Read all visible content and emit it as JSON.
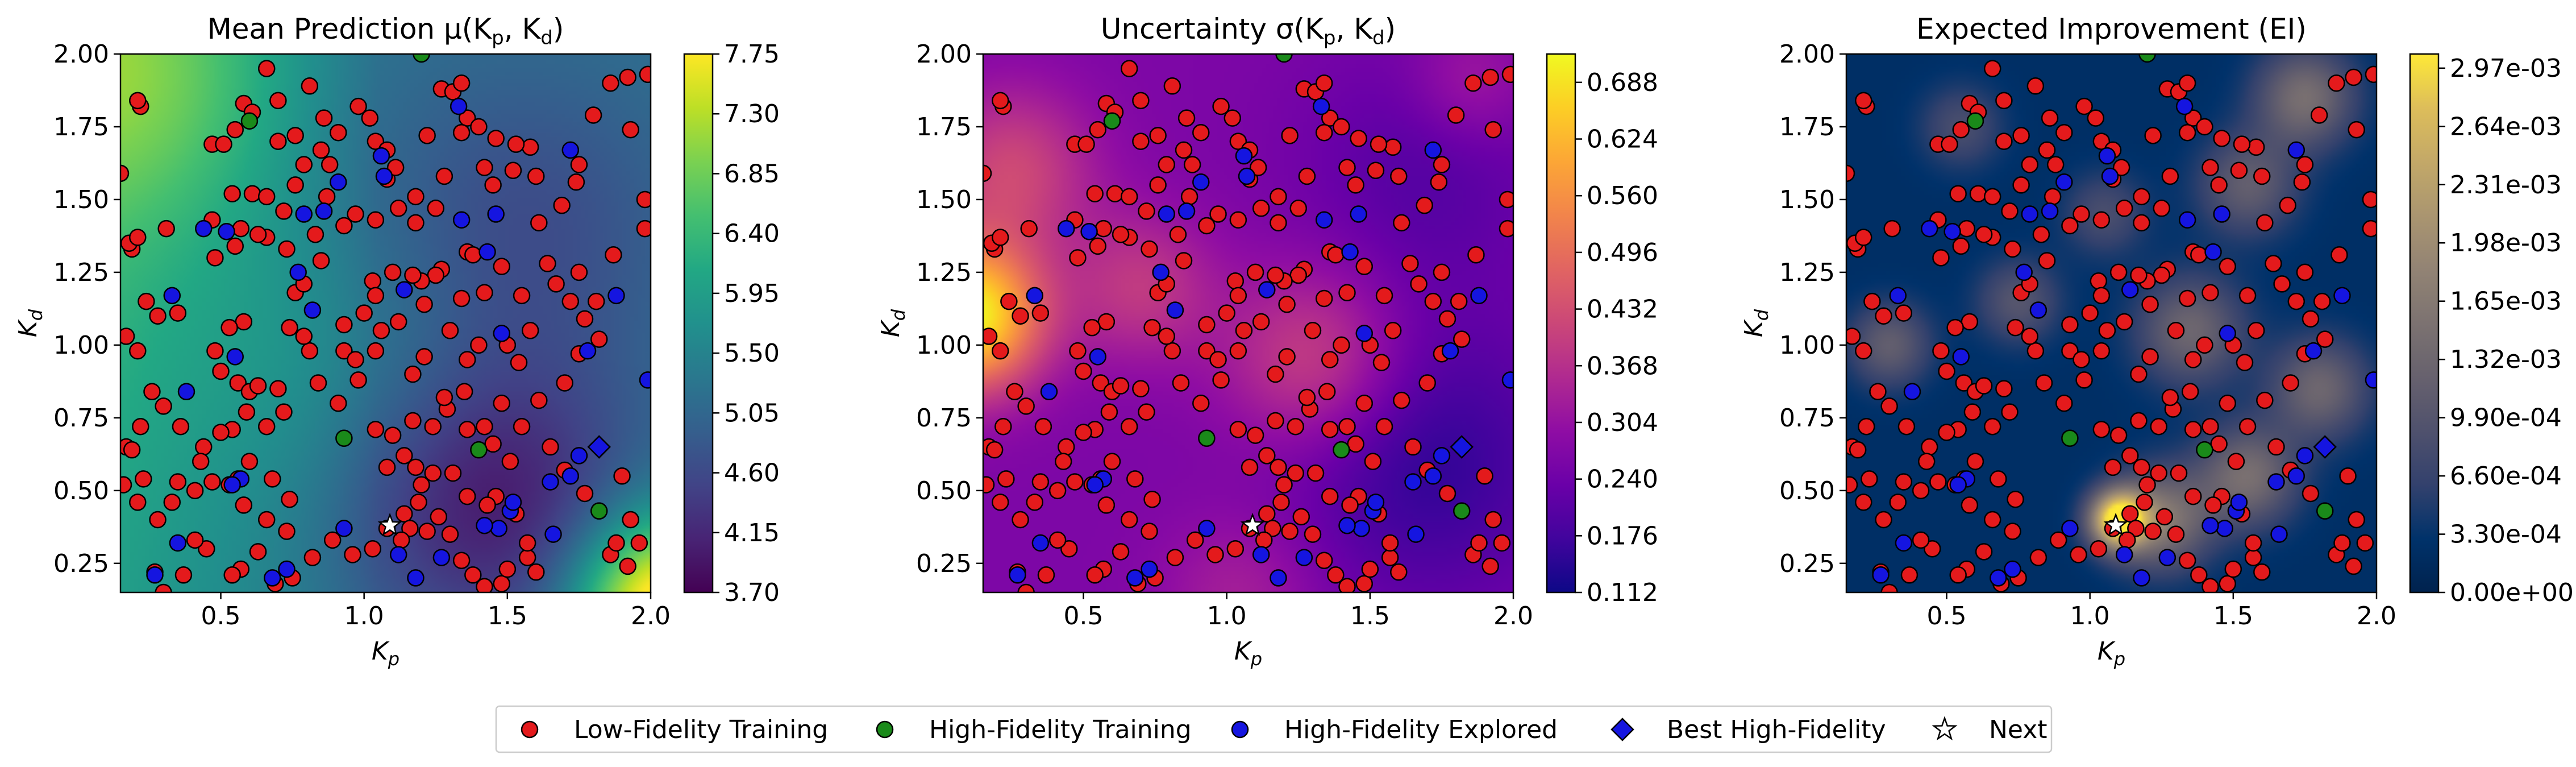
{
  "chart_data": [
    {
      "type": "heatmap",
      "title": "Mean Prediction μ(K",
      "title_p": "p",
      "title_sep": ", K",
      "title_d": "d",
      "title_end": ")",
      "xlabel": "K",
      "xlabel_sub": "p",
      "ylabel": "K",
      "ylabel_sub": "d",
      "xlim": [
        0.15,
        2.0
      ],
      "ylim": [
        0.15,
        2.0
      ],
      "xticks": [
        "0.5",
        "1.0",
        "1.5",
        "2.0"
      ],
      "yticks": [
        "0.25",
        "0.50",
        "0.75",
        "1.00",
        "1.25",
        "1.50",
        "1.75",
        "2.00"
      ],
      "colormap": "viridis",
      "colorbar_range": [
        3.7,
        7.75
      ],
      "colorbar_ticks": [
        "3.70",
        "4.15",
        "4.60",
        "5.05",
        "5.50",
        "5.95",
        "6.40",
        "6.85",
        "7.30",
        "7.75"
      ]
    },
    {
      "type": "heatmap",
      "title": "Uncertainty σ(K",
      "title_p": "p",
      "title_sep": ", K",
      "title_d": "d",
      "title_end": ")",
      "xlabel": "K",
      "xlabel_sub": "p",
      "ylabel": "K",
      "ylabel_sub": "d",
      "xlim": [
        0.15,
        2.0
      ],
      "ylim": [
        0.15,
        2.0
      ],
      "xticks": [
        "0.5",
        "1.0",
        "1.5",
        "2.0"
      ],
      "yticks": [
        "0.25",
        "0.50",
        "0.75",
        "1.00",
        "1.25",
        "1.50",
        "1.75",
        "2.00"
      ],
      "colormap": "plasma",
      "colorbar_range": [
        0.112,
        0.72
      ],
      "colorbar_ticks": [
        "0.112",
        "0.176",
        "0.240",
        "0.304",
        "0.368",
        "0.432",
        "0.496",
        "0.560",
        "0.624",
        "0.688"
      ]
    },
    {
      "type": "heatmap",
      "title": "Expected Improvement (EI)",
      "xlabel": "K",
      "xlabel_sub": "p",
      "ylabel": "K",
      "ylabel_sub": "d",
      "xlim": [
        0.15,
        2.0
      ],
      "ylim": [
        0.15,
        2.0
      ],
      "xticks": [
        "0.5",
        "1.0",
        "1.5",
        "2.0"
      ],
      "yticks": [
        "0.25",
        "0.50",
        "0.75",
        "1.00",
        "1.25",
        "1.50",
        "1.75",
        "2.00"
      ],
      "colormap": "cividis",
      "colorbar_range": [
        0.0,
        0.00305
      ],
      "colorbar_ticks": [
        "0.00e+00",
        "3.30e-04",
        "6.60e-04",
        "9.90e-04",
        "1.32e-03",
        "1.65e-03",
        "1.98e-03",
        "2.31e-03",
        "2.64e-03",
        "2.97e-03"
      ]
    }
  ],
  "points": {
    "low_fidelity": [
      [
        0.22,
        1.82
      ],
      [
        0.21,
        1.84
      ],
      [
        0.15,
        1.59
      ],
      [
        0.19,
        1.33
      ],
      [
        0.18,
        1.35
      ],
      [
        0.21,
        1.37
      ],
      [
        0.24,
        1.15
      ],
      [
        0.17,
        1.03
      ],
      [
        0.21,
        0.98
      ],
      [
        0.28,
        1.1
      ],
      [
        0.35,
        1.11
      ],
      [
        0.31,
        1.4
      ],
      [
        0.47,
        1.69
      ],
      [
        0.51,
        1.69
      ],
      [
        0.55,
        1.74
      ],
      [
        0.58,
        1.83
      ],
      [
        0.61,
        1.8
      ],
      [
        0.66,
        1.95
      ],
      [
        0.7,
        1.84
      ],
      [
        0.76,
        1.72
      ],
      [
        0.7,
        1.7
      ],
      [
        0.81,
        1.89
      ],
      [
        0.86,
        1.78
      ],
      [
        0.85,
        1.67
      ],
      [
        0.88,
        1.62
      ],
      [
        0.91,
        1.73
      ],
      [
        0.98,
        1.82
      ],
      [
        1.02,
        1.78
      ],
      [
        1.04,
        1.7
      ],
      [
        1.08,
        1.67
      ],
      [
        1.08,
        1.57
      ],
      [
        1.11,
        1.61
      ],
      [
        1.12,
        1.47
      ],
      [
        1.18,
        1.51
      ],
      [
        1.22,
        1.72
      ],
      [
        1.27,
        1.88
      ],
      [
        1.31,
        1.87
      ],
      [
        1.34,
        1.9
      ],
      [
        1.36,
        1.78
      ],
      [
        1.34,
        1.73
      ],
      [
        1.4,
        1.75
      ],
      [
        1.46,
        1.71
      ],
      [
        1.45,
        1.55
      ],
      [
        1.52,
        1.6
      ],
      [
        1.58,
        1.68
      ],
      [
        1.69,
        1.48
      ],
      [
        1.75,
        1.62
      ],
      [
        1.74,
        1.56
      ],
      [
        1.8,
        1.79
      ],
      [
        1.86,
        1.9
      ],
      [
        1.92,
        1.92
      ],
      [
        1.93,
        1.74
      ],
      [
        1.99,
        1.93
      ],
      [
        1.98,
        1.5
      ],
      [
        1.98,
        1.4
      ],
      [
        1.87,
        1.31
      ],
      [
        1.75,
        1.25
      ],
      [
        1.81,
        1.15
      ],
      [
        1.82,
        1.02
      ],
      [
        1.75,
        0.97
      ],
      [
        1.77,
        1.09
      ],
      [
        1.7,
        0.87
      ],
      [
        1.61,
        0.81
      ],
      [
        1.65,
        0.65
      ],
      [
        1.7,
        0.57
      ],
      [
        1.77,
        0.49
      ],
      [
        1.9,
        0.55
      ],
      [
        1.93,
        0.4
      ],
      [
        1.96,
        0.32
      ],
      [
        1.86,
        0.28
      ],
      [
        1.88,
        0.32
      ],
      [
        1.92,
        0.24
      ],
      [
        1.54,
        0.94
      ],
      [
        1.5,
        1.0
      ],
      [
        1.58,
        1.05
      ],
      [
        1.55,
        1.17
      ],
      [
        1.48,
        1.27
      ],
      [
        1.36,
        1.32
      ],
      [
        1.27,
        1.26
      ],
      [
        1.25,
        1.24
      ],
      [
        1.21,
        1.14
      ],
      [
        1.2,
        1.22
      ],
      [
        1.17,
        1.24
      ],
      [
        1.1,
        1.25
      ],
      [
        1.03,
        1.22
      ],
      [
        1.04,
        1.17
      ],
      [
        1.0,
        1.11
      ],
      [
        0.93,
        1.07
      ],
      [
        0.93,
        0.98
      ],
      [
        0.97,
        0.95
      ],
      [
        1.04,
        0.98
      ],
      [
        0.98,
        0.88
      ],
      [
        0.91,
        0.8
      ],
      [
        0.84,
        0.87
      ],
      [
        0.81,
        0.98
      ],
      [
        0.79,
        1.03
      ],
      [
        0.74,
        1.06
      ],
      [
        0.76,
        1.18
      ],
      [
        0.79,
        1.21
      ],
      [
        0.83,
        1.38
      ],
      [
        0.85,
        1.29
      ],
      [
        0.73,
        1.33
      ],
      [
        0.72,
        1.46
      ],
      [
        0.66,
        1.37
      ],
      [
        0.63,
        1.38
      ],
      [
        0.57,
        1.4
      ],
      [
        0.55,
        1.34
      ],
      [
        0.48,
        1.3
      ],
      [
        0.47,
        1.43
      ],
      [
        0.54,
        1.52
      ],
      [
        0.61,
        1.52
      ],
      [
        0.66,
        1.51
      ],
      [
        0.58,
        1.08
      ],
      [
        0.53,
        1.06
      ],
      [
        0.48,
        0.98
      ],
      [
        0.5,
        0.91
      ],
      [
        0.56,
        0.87
      ],
      [
        0.6,
        0.84
      ],
      [
        0.63,
        0.86
      ],
      [
        0.7,
        0.85
      ],
      [
        0.72,
        0.77
      ],
      [
        0.66,
        0.72
      ],
      [
        0.59,
        0.77
      ],
      [
        0.54,
        0.71
      ],
      [
        0.5,
        0.7
      ],
      [
        0.44,
        0.65
      ],
      [
        0.43,
        0.6
      ],
      [
        0.35,
        0.53
      ],
      [
        0.36,
        0.72
      ],
      [
        0.3,
        0.79
      ],
      [
        0.26,
        0.84
      ],
      [
        0.22,
        0.72
      ],
      [
        0.17,
        0.65
      ],
      [
        0.19,
        0.64
      ],
      [
        0.16,
        0.52
      ],
      [
        0.23,
        0.54
      ],
      [
        0.21,
        0.46
      ],
      [
        0.28,
        0.4
      ],
      [
        0.33,
        0.46
      ],
      [
        0.41,
        0.5
      ],
      [
        0.47,
        0.53
      ],
      [
        0.53,
        0.52
      ],
      [
        0.58,
        0.45
      ],
      [
        0.56,
        0.54
      ],
      [
        0.6,
        0.6
      ],
      [
        0.68,
        0.54
      ],
      [
        0.74,
        0.47
      ],
      [
        0.73,
        0.36
      ],
      [
        0.66,
        0.4
      ],
      [
        0.63,
        0.29
      ],
      [
        0.57,
        0.23
      ],
      [
        0.45,
        0.3
      ],
      [
        0.41,
        0.33
      ],
      [
        0.37,
        0.21
      ],
      [
        0.3,
        0.15
      ],
      [
        0.27,
        0.22
      ],
      [
        0.54,
        0.21
      ],
      [
        0.69,
        0.18
      ],
      [
        0.75,
        0.2
      ],
      [
        0.82,
        0.27
      ],
      [
        0.89,
        0.33
      ],
      [
        0.96,
        0.28
      ],
      [
        1.03,
        0.3
      ],
      [
        1.08,
        0.37
      ],
      [
        1.14,
        0.42
      ],
      [
        1.16,
        0.37
      ],
      [
        1.13,
        0.33
      ],
      [
        1.22,
        0.36
      ],
      [
        1.19,
        0.46
      ],
      [
        1.2,
        0.52
      ],
      [
        1.26,
        0.41
      ],
      [
        1.3,
        0.35
      ],
      [
        1.34,
        0.26
      ],
      [
        1.38,
        0.21
      ],
      [
        1.42,
        0.17
      ],
      [
        1.48,
        0.18
      ],
      [
        1.5,
        0.23
      ],
      [
        1.57,
        0.27
      ],
      [
        1.6,
        0.22
      ],
      [
        1.57,
        0.32
      ],
      [
        1.53,
        0.42
      ],
      [
        1.46,
        0.48
      ],
      [
        1.43,
        0.45
      ],
      [
        1.36,
        0.48
      ],
      [
        1.31,
        0.56
      ],
      [
        1.24,
        0.56
      ],
      [
        1.18,
        0.58
      ],
      [
        1.14,
        0.62
      ],
      [
        1.08,
        0.58
      ],
      [
        1.1,
        0.69
      ],
      [
        1.04,
        0.71
      ],
      [
        1.17,
        0.74
      ],
      [
        1.24,
        0.72
      ],
      [
        1.29,
        0.78
      ],
      [
        1.36,
        0.71
      ],
      [
        1.42,
        0.72
      ],
      [
        1.45,
        0.66
      ],
      [
        1.51,
        0.6
      ],
      [
        1.55,
        0.72
      ],
      [
        1.48,
        0.8
      ],
      [
        1.35,
        0.84
      ],
      [
        1.28,
        0.82
      ],
      [
        1.17,
        0.9
      ],
      [
        1.21,
        0.96
      ],
      [
        1.3,
        1.05
      ],
      [
        1.36,
        0.95
      ],
      [
        1.4,
        1.0
      ],
      [
        1.34,
        1.16
      ],
      [
        1.42,
        1.18
      ],
      [
        1.38,
        1.31
      ],
      [
        1.64,
        1.28
      ],
      [
        1.67,
        1.21
      ],
      [
        1.72,
        1.15
      ],
      [
        1.61,
        1.42
      ],
      [
        1.6,
        1.58
      ],
      [
        1.53,
        1.69
      ],
      [
        1.42,
        1.61
      ],
      [
        1.28,
        1.58
      ],
      [
        1.25,
        1.47
      ],
      [
        1.18,
        1.42
      ],
      [
        1.04,
        1.43
      ],
      [
        0.97,
        1.45
      ],
      [
        0.93,
        1.41
      ],
      [
        0.87,
        1.51
      ],
      [
        0.76,
        1.55
      ],
      [
        0.79,
        1.62
      ],
      [
        1.12,
        1.08
      ],
      [
        1.06,
        1.05
      ]
    ],
    "high_fidelity": [
      [
        0.6,
        1.77
      ],
      [
        1.2,
        2.0
      ],
      [
        0.93,
        0.68
      ],
      [
        1.4,
        0.64
      ],
      [
        1.82,
        0.43
      ]
    ],
    "high_fidelity_explored": [
      [
        0.52,
        1.39
      ],
      [
        0.33,
        1.17
      ],
      [
        0.38,
        0.84
      ],
      [
        0.55,
        0.96
      ],
      [
        0.57,
        0.54
      ],
      [
        0.54,
        0.52
      ],
      [
        0.35,
        0.32
      ],
      [
        0.27,
        0.21
      ],
      [
        0.68,
        0.2
      ],
      [
        0.73,
        0.23
      ],
      [
        0.77,
        1.25
      ],
      [
        0.79,
        1.45
      ],
      [
        0.86,
        1.46
      ],
      [
        0.82,
        1.12
      ],
      [
        0.91,
        1.56
      ],
      [
        1.06,
        1.65
      ],
      [
        1.14,
        1.19
      ],
      [
        0.93,
        0.37
      ],
      [
        1.18,
        0.2
      ],
      [
        1.27,
        0.27
      ],
      [
        1.34,
        1.43
      ],
      [
        1.46,
        1.45
      ],
      [
        1.43,
        1.32
      ],
      [
        1.47,
        0.37
      ],
      [
        1.51,
        0.43
      ],
      [
        1.66,
        0.35
      ],
      [
        1.65,
        0.53
      ],
      [
        1.72,
        0.55
      ],
      [
        1.75,
        0.62
      ],
      [
        1.72,
        1.67
      ],
      [
        1.78,
        0.98
      ],
      [
        1.88,
        1.17
      ],
      [
        1.99,
        0.88
      ],
      [
        1.48,
        1.04
      ],
      [
        1.42,
        0.38
      ],
      [
        1.33,
        1.82
      ],
      [
        1.07,
        1.58
      ],
      [
        0.44,
        1.4
      ],
      [
        1.52,
        0.46
      ],
      [
        1.12,
        0.28
      ]
    ],
    "best": [
      [
        1.82,
        0.65
      ]
    ],
    "next": [
      [
        1.09,
        0.38
      ]
    ]
  },
  "legend": {
    "items": [
      {
        "label": "Low-Fidelity Training",
        "marker": "circle",
        "color": "#e41a1c"
      },
      {
        "label": "High-Fidelity Training",
        "marker": "circle",
        "color": "#1a8a1a"
      },
      {
        "label": "High-Fidelity Explored",
        "marker": "circle",
        "color": "#1515e0"
      },
      {
        "label": "Best High-Fidelity",
        "marker": "diamond",
        "color": "#1515e0"
      },
      {
        "label": "Next",
        "marker": "star",
        "color": "#ffffff"
      }
    ]
  }
}
